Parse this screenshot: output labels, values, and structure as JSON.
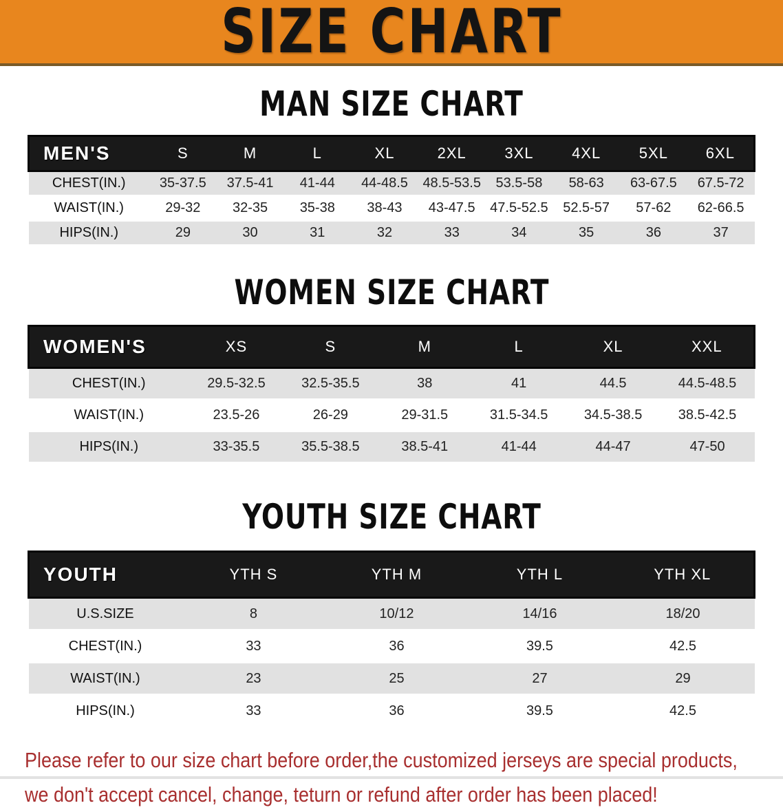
{
  "banner": {
    "title": "SIZE CHART"
  },
  "sections": [
    {
      "title": "MAN SIZE CHART",
      "table": {
        "corner": "MEN'S",
        "columns": [
          "S",
          "M",
          "L",
          "XL",
          "2XL",
          "3XL",
          "4XL",
          "5XL",
          "6XL"
        ],
        "rows": [
          {
            "label": "CHEST(IN.)",
            "values": [
              "35-37.5",
              "37.5-41",
              "41-44",
              "44-48.5",
              "48.5-53.5",
              "53.5-58",
              "58-63",
              "63-67.5",
              "67.5-72"
            ]
          },
          {
            "label": "WAIST(IN.)",
            "values": [
              "29-32",
              "32-35",
              "35-38",
              "38-43",
              "43-47.5",
              "47.5-52.5",
              "52.5-57",
              "57-62",
              "62-66.5"
            ]
          },
          {
            "label": "HIPS(IN.)",
            "values": [
              "29",
              "30",
              "31",
              "32",
              "33",
              "34",
              "35",
              "36",
              "37"
            ]
          }
        ]
      }
    },
    {
      "title": "WOMEN SIZE CHART",
      "table": {
        "corner": "WOMEN'S",
        "columns": [
          "XS",
          "S",
          "M",
          "L",
          "XL",
          "XXL"
        ],
        "rows": [
          {
            "label": "CHEST(IN.)",
            "values": [
              "29.5-32.5",
              "32.5-35.5",
              "38",
              "41",
              "44.5",
              "44.5-48.5"
            ]
          },
          {
            "label": "WAIST(IN.)",
            "values": [
              "23.5-26",
              "26-29",
              "29-31.5",
              "31.5-34.5",
              "34.5-38.5",
              "38.5-42.5"
            ]
          },
          {
            "label": "HIPS(IN.)",
            "values": [
              "33-35.5",
              "35.5-38.5",
              "38.5-41",
              "41-44",
              "44-47",
              "47-50"
            ]
          }
        ]
      }
    },
    {
      "title": "YOUTH SIZE CHART",
      "table": {
        "corner": "YOUTH",
        "columns": [
          "YTH S",
          "YTH M",
          "YTH L",
          "YTH XL"
        ],
        "rows": [
          {
            "label": "U.S.SIZE",
            "values": [
              "8",
              "10/12",
              "14/16",
              "18/20"
            ]
          },
          {
            "label": "CHEST(IN.)",
            "values": [
              "33",
              "36",
              "39.5",
              "42.5"
            ]
          },
          {
            "label": "WAIST(IN.)",
            "values": [
              "23",
              "25",
              "27",
              "29"
            ]
          },
          {
            "label": "HIPS(IN.)",
            "values": [
              "33",
              "36",
              "39.5",
              "42.5"
            ]
          }
        ]
      }
    }
  ],
  "footer": {
    "lines": [
      "Please refer to our size chart before order,the customized jerseys are special products,",
      "we don't accept cancel, change, teturn or refund after order has been placed!"
    ]
  },
  "colors": {
    "banner_orange": "#E8861E",
    "table_header_black": "#191919",
    "row_gray": "#E1E1E1",
    "disclaimer_red": "#A82F2F"
  }
}
